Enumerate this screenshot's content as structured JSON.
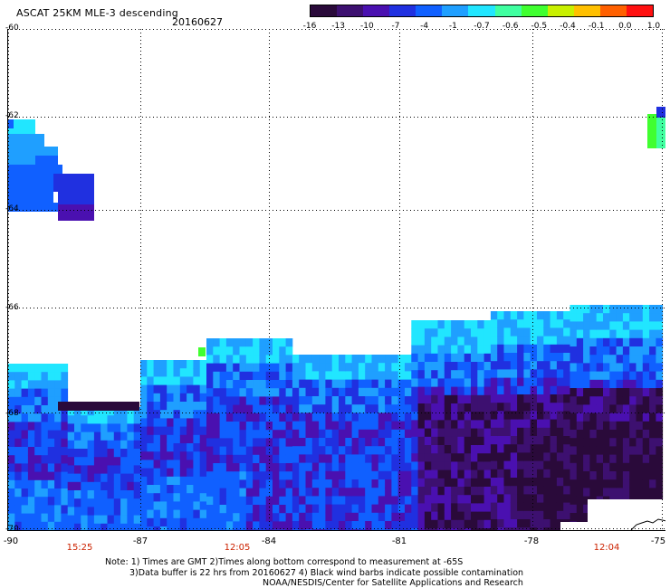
{
  "header": {
    "title": "ASCAT 25KM MLE-3 descending",
    "date": "20160627"
  },
  "colorbar": {
    "labels": [
      "-16",
      "-13",
      "-10",
      "-7",
      "-4",
      "-1",
      "-0.7",
      "-0.6",
      "-0.5",
      "-0.4",
      "-0.1",
      "0.0",
      "1.0"
    ],
    "colors": [
      "#2a0a3a",
      "#3d1070",
      "#4a10b0",
      "#2030e0",
      "#1060ff",
      "#1f9fff",
      "#21e6ff",
      "#40ffa0",
      "#40ff30",
      "#c8f000",
      "#ffc000",
      "#ff6000",
      "#ff1010"
    ]
  },
  "axes": {
    "lat_labels": [
      "-60",
      "-62",
      "-64",
      "-66",
      "-68",
      "-70"
    ],
    "lon_labels": [
      "-90",
      "-87",
      "-84",
      "-81",
      "-78",
      "-75"
    ],
    "time_labels": [
      "15:25",
      "12:05",
      "12:04"
    ]
  },
  "notes": {
    "line1": "Note: 1) Times are GMT 2)Times along bottom correspond to measurement at -65S",
    "line2": "3)Data buffer is 22 hrs from 20160627 4) Black wind barbs indicate possible contamination",
    "line3": "NOAA/NESDIS/Center for Satellite Applications and Research"
  }
}
